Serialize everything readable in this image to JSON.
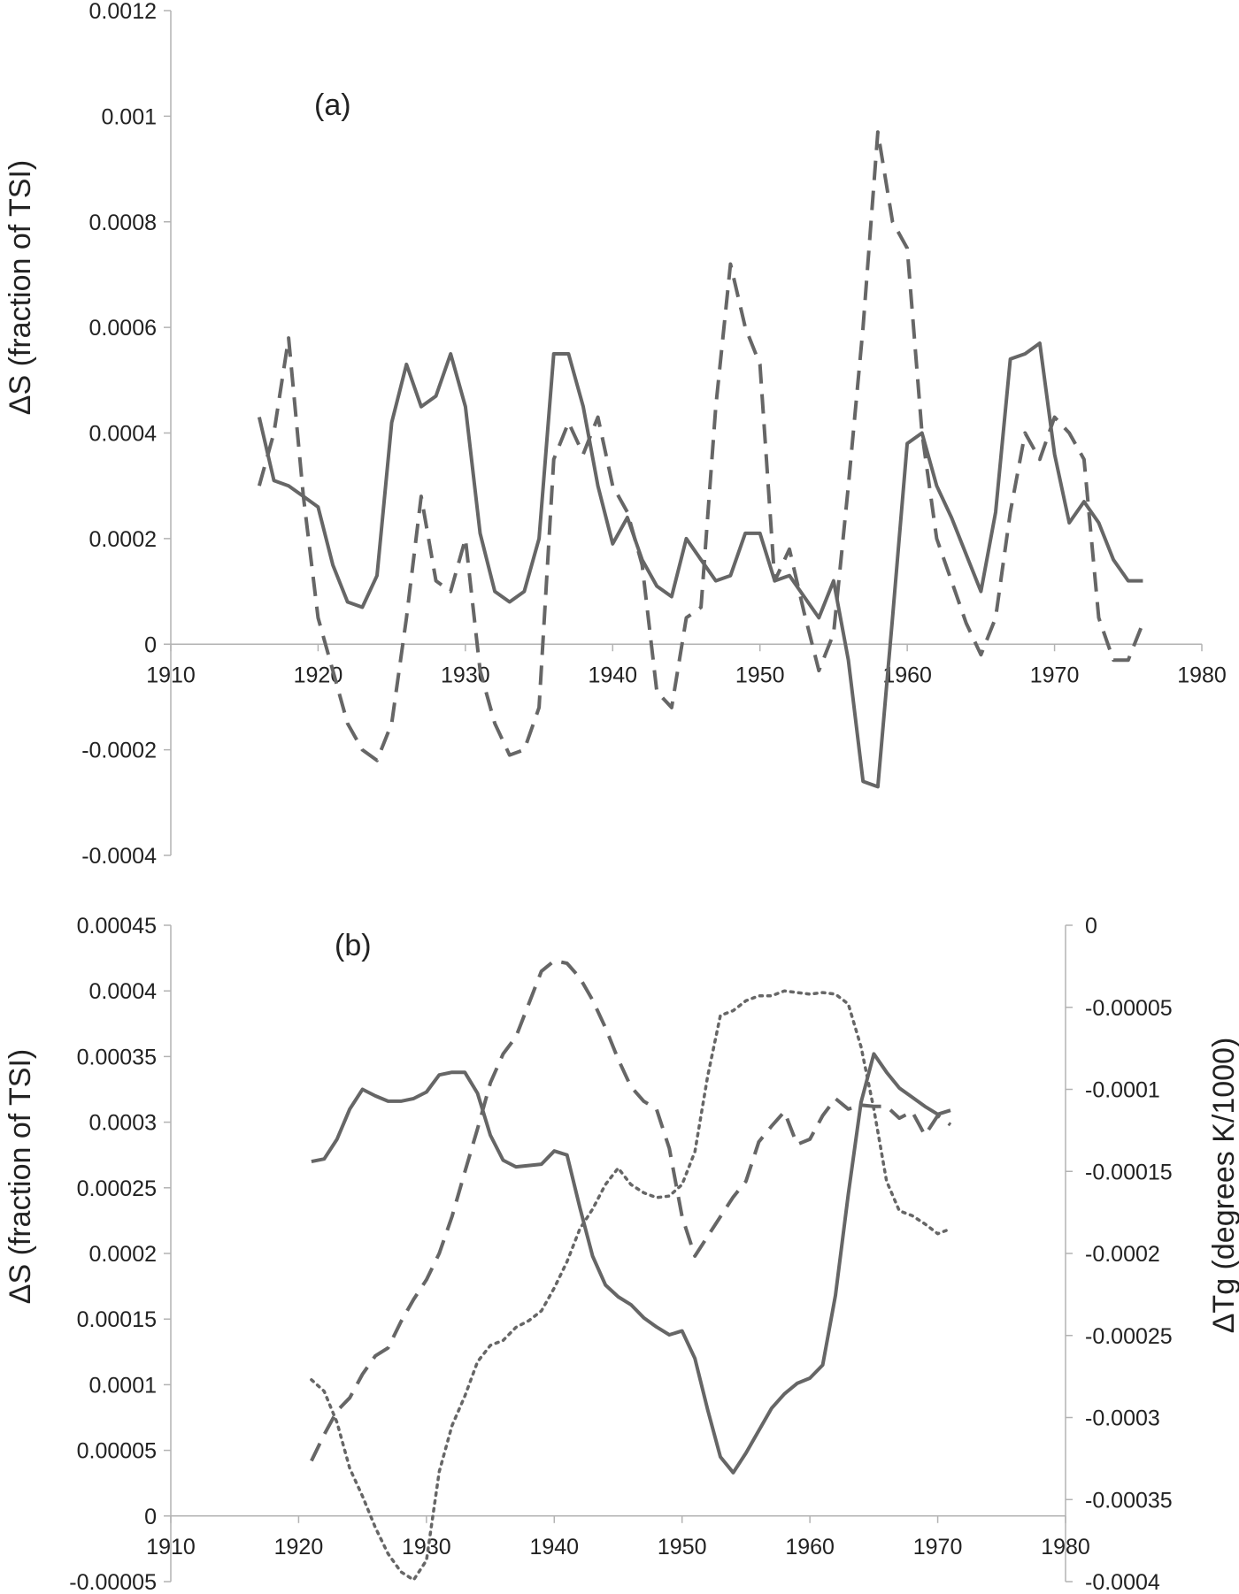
{
  "figure": {
    "line_color": "#666666",
    "axis_color": "#b3b3b3"
  },
  "panel_a": {
    "label": "(a)",
    "ylabel": "ΔS (fraction of TSI)",
    "y_ticks": [
      "0.0012",
      "0.001",
      "0.0008",
      "0.0006",
      "0.0004",
      "0.0002",
      "0",
      "-0.0002",
      "-0.0004"
    ],
    "x_ticks": [
      "1910",
      "1920",
      "1930",
      "1940",
      "1950",
      "1960",
      "1970",
      "1980"
    ],
    "chart_data": {
      "type": "line",
      "xlim": [
        1910,
        1980
      ],
      "ylim": [
        -0.0004,
        0.0012
      ],
      "grid": false,
      "series": [
        {
          "style": "solid",
          "x": [
            1916,
            1917,
            1918,
            1919,
            1920,
            1921,
            1922,
            1923,
            1924,
            1925,
            1926,
            1927,
            1928,
            1929,
            1930,
            1931,
            1932,
            1933,
            1934,
            1935,
            1936,
            1937,
            1938,
            1939,
            1940,
            1941,
            1942,
            1943,
            1944,
            1945,
            1946,
            1947,
            1948,
            1949,
            1950,
            1951,
            1952,
            1953,
            1954,
            1955,
            1956,
            1957,
            1958,
            1959,
            1960,
            1961,
            1962,
            1963,
            1964,
            1965,
            1966,
            1967,
            1968,
            1969,
            1970,
            1971,
            1972,
            1973,
            1974,
            1975,
            1976
          ],
          "y": [
            0.00043,
            0.00031,
            0.0003,
            0.00028,
            0.00026,
            0.00015,
            8e-05,
            7e-05,
            0.00013,
            0.00042,
            0.00053,
            0.00045,
            0.00047,
            0.00055,
            0.00045,
            0.00021,
            0.0001,
            8e-05,
            0.0001,
            0.0002,
            0.00055,
            0.00055,
            0.00045,
            0.0003,
            0.00019,
            0.00024,
            0.00016,
            0.00011,
            9e-05,
            0.0002,
            0.00016,
            0.00012,
            0.00013,
            0.00021,
            0.00021,
            0.00012,
            0.00013,
            9e-05,
            5e-05,
            0.00012,
            -3e-05,
            -0.00026,
            -0.00027,
            5e-05,
            0.00038,
            0.0004,
            0.0003,
            0.00024,
            0.00017,
            0.0001,
            0.00025,
            0.00054,
            0.00055,
            0.00057,
            0.00036,
            0.00023,
            0.00027,
            0.00023,
            0.00016,
            0.00012,
            0.00012
          ]
        },
        {
          "style": "dashed",
          "x": [
            1916,
            1917,
            1918,
            1919,
            1920,
            1921,
            1922,
            1923,
            1924,
            1925,
            1926,
            1927,
            1928,
            1929,
            1930,
            1931,
            1932,
            1933,
            1934,
            1935,
            1936,
            1937,
            1938,
            1939,
            1940,
            1941,
            1942,
            1943,
            1944,
            1945,
            1946,
            1947,
            1948,
            1949,
            1950,
            1951,
            1952,
            1953,
            1954,
            1955,
            1956,
            1957,
            1958,
            1959,
            1960,
            1961,
            1962,
            1963,
            1964,
            1965,
            1966,
            1967,
            1968,
            1969,
            1970,
            1971,
            1972,
            1973,
            1974,
            1975,
            1976
          ],
          "y": [
            0.0003,
            0.0004,
            0.00058,
            0.00028,
            5e-05,
            -5e-05,
            -0.00015,
            -0.0002,
            -0.00022,
            -0.00015,
            5e-05,
            0.00028,
            0.00012,
            0.0001,
            0.0002,
            -5e-05,
            -0.00015,
            -0.00021,
            -0.0002,
            -0.00012,
            0.00035,
            0.00042,
            0.00036,
            0.00043,
            0.0003,
            0.00025,
            0.00015,
            -9e-05,
            -0.00012,
            5e-05,
            7e-05,
            0.00045,
            0.00072,
            0.0006,
            0.00053,
            0.00012,
            0.00018,
            6e-05,
            -5e-05,
            2e-05,
            0.0003,
            0.0006,
            0.00097,
            0.0008,
            0.00075,
            0.0004,
            0.0002,
            0.00012,
            4e-05,
            -2e-05,
            5e-05,
            0.00025,
            0.0004,
            0.00035,
            0.00043,
            0.0004,
            0.00035,
            5e-05,
            -3e-05,
            -3e-05,
            4e-05
          ]
        }
      ]
    }
  },
  "panel_b": {
    "label": "(b)",
    "ylabel_left": "ΔS (fraction of TSI)",
    "ylabel_right": "ΔTg (degrees K/1000)",
    "y_ticks_left": [
      "0.00045",
      "0.0004",
      "0.00035",
      "0.0003",
      "0.00025",
      "0.0002",
      "0.00015",
      "0.0001",
      "0.00005",
      "0",
      "-0.00005"
    ],
    "y_ticks_right": [
      "0",
      "-0.00005",
      "-0.0001",
      "-0.00015",
      "-0.0002",
      "-0.00025",
      "-0.0003",
      "-0.00035",
      "-0.0004"
    ],
    "x_ticks": [
      "1910",
      "1920",
      "1930",
      "1940",
      "1950",
      "1960",
      "1970",
      "1980"
    ],
    "chart_data": {
      "type": "line",
      "xlim": [
        1910,
        1980
      ],
      "ylim": [
        -5e-05,
        0.00045
      ],
      "ylim_right": [
        -0.0004,
        0
      ],
      "grid": false,
      "series": [
        {
          "style": "solid",
          "axis": "left",
          "x": [
            1921,
            1922,
            1923,
            1924,
            1925,
            1926,
            1927,
            1928,
            1929,
            1930,
            1931,
            1932,
            1933,
            1934,
            1935,
            1936,
            1937,
            1938,
            1939,
            1940,
            1941,
            1942,
            1943,
            1944,
            1945,
            1946,
            1947,
            1948,
            1949,
            1950,
            1951,
            1952,
            1953,
            1954,
            1955,
            1956,
            1957,
            1958,
            1959,
            1960,
            1961,
            1962,
            1963,
            1964,
            1965,
            1966,
            1967,
            1968,
            1969,
            1970,
            1971
          ],
          "y": [
            0.00027,
            0.000272,
            0.000287,
            0.00031,
            0.000325,
            0.00032,
            0.000316,
            0.000316,
            0.000318,
            0.000323,
            0.000336,
            0.000338,
            0.000338,
            0.000322,
            0.00029,
            0.000271,
            0.000266,
            0.000267,
            0.000268,
            0.000278,
            0.000275,
            0.000235,
            0.000198,
            0.000176,
            0.000167,
            0.000161,
            0.000151,
            0.000144,
            0.000138,
            0.000141,
            0.00012,
            8.1e-05,
            4.5e-05,
            3.3e-05,
            4.8e-05,
            6.5e-05,
            8.2e-05,
            9.3e-05,
            0.000101,
            0.000105,
            0.000115,
            0.000168,
            0.000245,
            0.000315,
            0.000352,
            0.000338,
            0.000326,
            0.000319,
            0.000312,
            0.000306,
            0.000309
          ]
        },
        {
          "style": "dashed",
          "axis": "left",
          "x": [
            1921,
            1922,
            1923,
            1924,
            1925,
            1926,
            1927,
            1928,
            1929,
            1930,
            1931,
            1932,
            1933,
            1934,
            1935,
            1936,
            1937,
            1938,
            1939,
            1940,
            1941,
            1942,
            1943,
            1944,
            1945,
            1946,
            1947,
            1948,
            1949,
            1950,
            1951,
            1952,
            1953,
            1954,
            1955,
            1956,
            1957,
            1958,
            1959,
            1960,
            1961,
            1962,
            1963,
            1964,
            1965,
            1966,
            1967,
            1968,
            1969,
            1970,
            1971
          ],
          "y": [
            4.2e-05,
            6.2e-05,
            8e-05,
            9e-05,
            0.000108,
            0.000122,
            0.000128,
            0.000148,
            0.000165,
            0.00018,
            0.0002,
            0.000228,
            0.000262,
            0.000295,
            0.00033,
            0.000352,
            0.000365,
            0.00039,
            0.000415,
            0.000423,
            0.000421,
            0.00041,
            0.000393,
            0.000372,
            0.000348,
            0.000327,
            0.000316,
            0.00031,
            0.00028,
            0.000228,
            0.000198,
            0.000213,
            0.000228,
            0.000243,
            0.000255,
            0.000285,
            0.000297,
            0.000308,
            0.000283,
            0.000287,
            0.000305,
            0.000318,
            0.00031,
            0.000313,
            0.000312,
            0.000312,
            0.000303,
            0.000308,
            0.00029,
            0.000305,
            0.000298
          ]
        },
        {
          "style": "dotted",
          "axis": "right",
          "x": [
            1921,
            1922,
            1923,
            1924,
            1925,
            1926,
            1927,
            1928,
            1929,
            1930,
            1931,
            1932,
            1933,
            1934,
            1935,
            1936,
            1937,
            1938,
            1939,
            1940,
            1941,
            1942,
            1943,
            1944,
            1945,
            1946,
            1947,
            1948,
            1949,
            1950,
            1951,
            1952,
            1953,
            1954,
            1955,
            1956,
            1957,
            1958,
            1959,
            1960,
            1961,
            1962,
            1963,
            1964,
            1965,
            1966,
            1967,
            1968,
            1969,
            1970,
            1971
          ],
          "y": [
            -0.000277,
            -0.000284,
            -0.000303,
            -0.000331,
            -0.000348,
            -0.000367,
            -0.000383,
            -0.000394,
            -0.000399,
            -0.000387,
            -0.000333,
            -0.000305,
            -0.000287,
            -0.000266,
            -0.000256,
            -0.000253,
            -0.000245,
            -0.000241,
            -0.000235,
            -0.000221,
            -0.000205,
            -0.000185,
            -0.000173,
            -0.000158,
            -0.000148,
            -0.000158,
            -0.000163,
            -0.000166,
            -0.000165,
            -0.000158,
            -0.000138,
            -9.2e-05,
            -5.5e-05,
            -5.2e-05,
            -4.6e-05,
            -4.3e-05,
            -4.3e-05,
            -4e-05,
            -4.1e-05,
            -4.2e-05,
            -4.1e-05,
            -4.2e-05,
            -4.8e-05,
            -7.4e-05,
            -0.000112,
            -0.000156,
            -0.000174,
            -0.000177,
            -0.000182,
            -0.000188,
            -0.000185
          ]
        }
      ]
    }
  }
}
